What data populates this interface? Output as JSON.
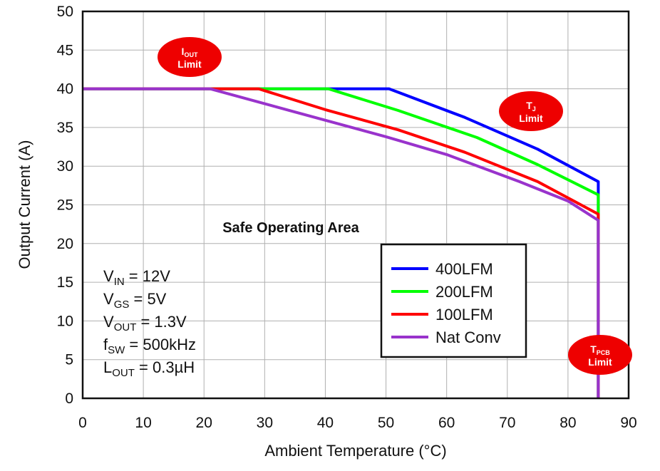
{
  "chart_data": {
    "type": "line",
    "xlabel": "Ambient Temperature (°C)",
    "ylabel": "Output Current (A)",
    "xlim": [
      0,
      90
    ],
    "ylim": [
      0,
      50
    ],
    "x_ticks": [
      0,
      10,
      20,
      30,
      40,
      50,
      60,
      70,
      80,
      90
    ],
    "y_ticks": [
      0,
      5,
      10,
      15,
      20,
      25,
      30,
      35,
      40,
      45,
      50
    ],
    "grid": true,
    "legend_position": "center-right",
    "series": [
      {
        "name": "400LFM",
        "color": "#0000ff",
        "points": [
          [
            0,
            40
          ],
          [
            50.5,
            40
          ],
          [
            63,
            36.3
          ],
          [
            75,
            32.2
          ],
          [
            85,
            28
          ],
          [
            85,
            0
          ]
        ]
      },
      {
        "name": "200LFM",
        "color": "#00ff00",
        "points": [
          [
            0,
            40
          ],
          [
            40.5,
            40
          ],
          [
            52,
            37.2
          ],
          [
            65,
            33.7
          ],
          [
            75,
            30.2
          ],
          [
            85,
            26.3
          ],
          [
            85,
            0
          ]
        ]
      },
      {
        "name": "100LFM",
        "color": "#ff0000",
        "points": [
          [
            0,
            40
          ],
          [
            29,
            40
          ],
          [
            40,
            37.3
          ],
          [
            52,
            34.7
          ],
          [
            63,
            31.8
          ],
          [
            75,
            28
          ],
          [
            85,
            23.8
          ],
          [
            85,
            0
          ]
        ]
      },
      {
        "name": "Nat Conv",
        "color": "#9933cc",
        "points": [
          [
            0,
            40
          ],
          [
            21,
            40
          ],
          [
            35,
            37
          ],
          [
            50,
            33.8
          ],
          [
            60,
            31.5
          ],
          [
            72,
            28
          ],
          [
            80,
            25.5
          ],
          [
            85,
            23
          ],
          [
            85,
            0
          ]
        ]
      }
    ],
    "annotations": {
      "soa": "Safe Operating Area",
      "conditions": [
        {
          "main": "V",
          "sub": "IN",
          "rest": " = 12V"
        },
        {
          "main": "V",
          "sub": "GS",
          "rest": " = 5V"
        },
        {
          "main": "V",
          "sub": "OUT",
          "rest": " = 1.3V"
        },
        {
          "main": "f",
          "sub": "SW",
          "rest": " = 500kHz"
        },
        {
          "main": "L",
          "sub": "OUT",
          "rest": " = 0.3µH"
        }
      ],
      "limits": [
        {
          "id": "iout",
          "main": "I",
          "sub": "OUT",
          "line2": "Limit"
        },
        {
          "id": "tj",
          "main": "T",
          "sub": "J",
          "line2": "Limit"
        },
        {
          "id": "tpcb",
          "main": "T",
          "sub": "PCB",
          "line2": "Limit"
        }
      ]
    }
  },
  "colors": {
    "frame": "#111111",
    "grid": "#b0b0b0",
    "limit_badge": "#ee0000"
  }
}
